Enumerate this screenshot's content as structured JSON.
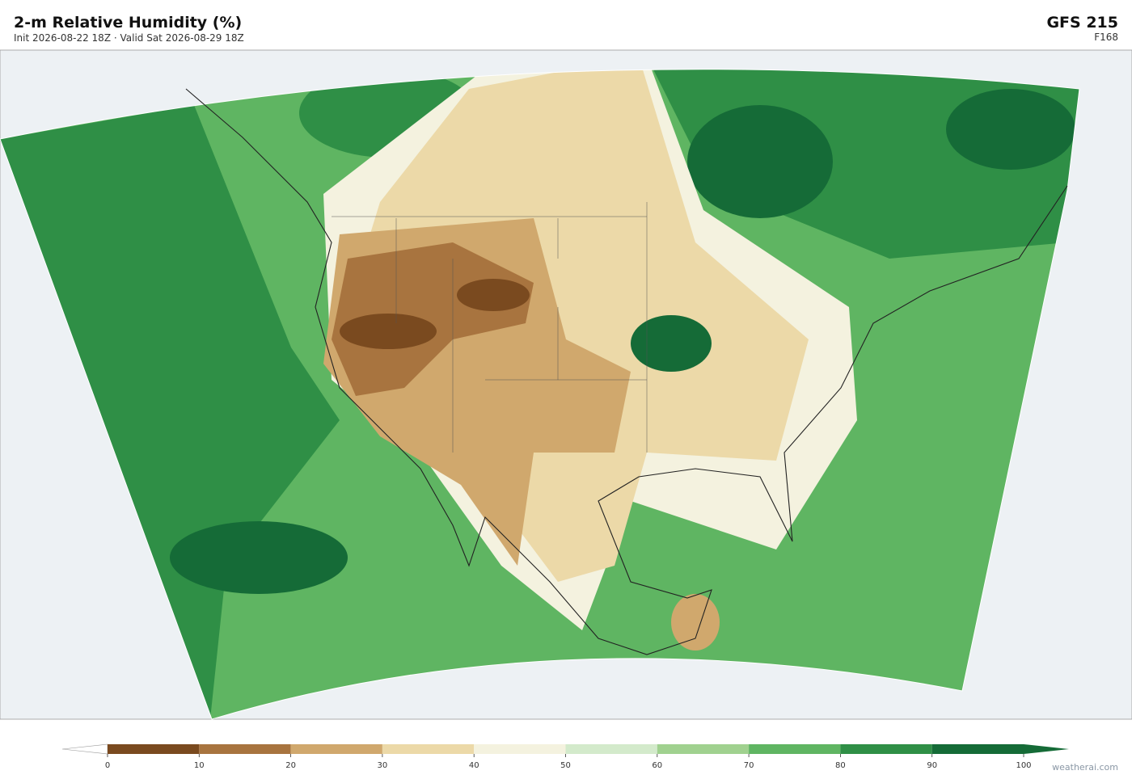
{
  "header": {
    "title": "2-m Relative Humidity  (%)",
    "subtitle": "Init 2026-08-22 18Z   ·   Valid Sat 2026-08-29 18Z",
    "model": "GFS  215",
    "forecast_hour": "F168"
  },
  "colorbar": {
    "ticks": [
      0,
      10,
      20,
      30,
      40,
      50,
      60,
      70,
      80,
      90,
      100
    ],
    "colors": [
      "#7a4a1f",
      "#a8743f",
      "#d0a86d",
      "#ecd9a8",
      "#f4f2df",
      "#d3eacb",
      "#a0d18f",
      "#5fb562",
      "#2f8f46",
      "#156b37"
    ],
    "under_color": "#ffffff",
    "over_color": "#156b37"
  },
  "watermark": "weatherai.com"
}
